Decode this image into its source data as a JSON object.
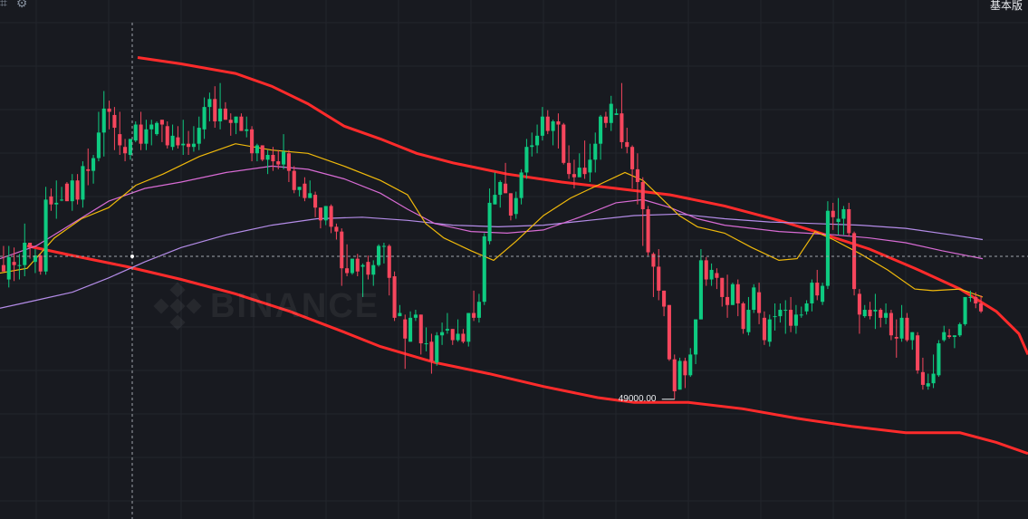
{
  "toolbar": {
    "left_icons": [
      "crop-icon",
      "gear-icon"
    ],
    "mode_label": "基本版"
  },
  "watermark": {
    "text": "BINANCE"
  },
  "colors": {
    "background": "#181a20",
    "grid": "#22252c",
    "bull": "#0ecb81",
    "bear": "#f6465d",
    "channel": "#ff2b2b",
    "ma_short": "#f0b90b",
    "ma_mid": "#d86bd4",
    "ma_long": "#b48ce8",
    "crosshair": "#a0a4ab"
  },
  "chart_data": {
    "type": "candlestick",
    "low_marker": "49000.00",
    "candles": [
      [
        57.4,
        57.0,
        58.6,
        57.0
      ],
      [
        56.5,
        57.9,
        58.6,
        56.0
      ],
      [
        57.6,
        57.4,
        58.5,
        56.4
      ],
      [
        57.4,
        57.4,
        58.1,
        56.5
      ],
      [
        57.4,
        58.8,
        60.0,
        56.7
      ],
      [
        58.8,
        58.5,
        58.8,
        57.8
      ],
      [
        57.6,
        58.0,
        58.4,
        56.9
      ],
      [
        58.0,
        57.0,
        58.1,
        56.8
      ],
      [
        57.0,
        61.5,
        62.3,
        56.8
      ],
      [
        61.7,
        61.2,
        62.2,
        60.8
      ],
      [
        61.2,
        61.3,
        62.7,
        60.3
      ],
      [
        61.5,
        61.5,
        62.3,
        61.4
      ],
      [
        62.5,
        61.4,
        62.6,
        61.4
      ],
      [
        61.4,
        62.7,
        63.1,
        60.8
      ],
      [
        62.7,
        61.5,
        63.1,
        61.2
      ],
      [
        61.5,
        63.6,
        63.9,
        61.0
      ],
      [
        63.4,
        63.3,
        64.7,
        62.4
      ],
      [
        63.3,
        64.1,
        64.3,
        62.5
      ],
      [
        64.1,
        65.7,
        67.0,
        63.9
      ],
      [
        65.7,
        67.2,
        68.3,
        64.2
      ],
      [
        67.2,
        67.0,
        67.7,
        65.9
      ],
      [
        66.8,
        66.0,
        67.3,
        64.6
      ],
      [
        65.6,
        64.9,
        67.0,
        64.3
      ],
      [
        64.8,
        64.4,
        65.3,
        63.9
      ],
      [
        64.3,
        65.3,
        65.3,
        64.0
      ],
      [
        65.2,
        66.2,
        66.4,
        65.1
      ],
      [
        66.2,
        65.0,
        67.0,
        64.6
      ],
      [
        65.0,
        65.9,
        66.5,
        64.6
      ],
      [
        65.9,
        66.2,
        66.5,
        64.9
      ],
      [
        65.6,
        66.3,
        66.4,
        65.5
      ],
      [
        66.5,
        66.2,
        66.5,
        65.1
      ],
      [
        66.1,
        64.9,
        66.4,
        64.7
      ],
      [
        64.8,
        65.5,
        66.2,
        64.6
      ],
      [
        65.4,
        64.9,
        66.1,
        64.7
      ],
      [
        64.9,
        65.0,
        66.5,
        64.3
      ],
      [
        65.0,
        64.8,
        65.8,
        64.3
      ],
      [
        64.8,
        65.0,
        66.1,
        64.5
      ],
      [
        65.0,
        66.0,
        66.7,
        64.6
      ],
      [
        65.9,
        67.3,
        67.9,
        65.3
      ],
      [
        67.3,
        67.8,
        68.2,
        66.4
      ],
      [
        67.8,
        66.4,
        68.6,
        66.0
      ],
      [
        66.4,
        67.2,
        68.8,
        65.9
      ],
      [
        67.2,
        66.5,
        67.6,
        66.5
      ],
      [
        66.5,
        66.3,
        66.9,
        65.5
      ],
      [
        66.3,
        66.7,
        66.7,
        65.6
      ],
      [
        66.7,
        65.8,
        66.9,
        65.8
      ],
      [
        65.8,
        65.9,
        66.7,
        65.4
      ],
      [
        65.9,
        64.4,
        66.1,
        63.9
      ],
      [
        64.4,
        64.9,
        65.0,
        63.9
      ],
      [
        64.9,
        64.0,
        64.9,
        63.9
      ],
      [
        64.0,
        64.3,
        64.6,
        63.1
      ],
      [
        64.3,
        63.9,
        64.8,
        63.3
      ],
      [
        63.9,
        63.7,
        64.6,
        63.4
      ],
      [
        63.7,
        64.5,
        65.6,
        63.4
      ],
      [
        64.4,
        63.3,
        64.6,
        62.6
      ],
      [
        63.3,
        62.1,
        63.6,
        61.9
      ],
      [
        62.1,
        62.3,
        62.3,
        61.7
      ],
      [
        62.5,
        61.6,
        62.9,
        61.4
      ],
      [
        61.6,
        61.9,
        62.7,
        61.7
      ],
      [
        61.8,
        61.0,
        62.0,
        60.4
      ],
      [
        61.0,
        60.2,
        61.0,
        59.7
      ],
      [
        60.2,
        61.1,
        61.1,
        59.9
      ],
      [
        61.1,
        59.8,
        61.2,
        59.4
      ],
      [
        59.8,
        59.5,
        60.0,
        59.0
      ],
      [
        59.5,
        57.2,
        59.7,
        56.1
      ],
      [
        57.2,
        56.9,
        58.7,
        56.7
      ],
      [
        56.9,
        57.8,
        57.8,
        56.8
      ],
      [
        57.8,
        57.0,
        58.1,
        56.7
      ],
      [
        57.3,
        57.4,
        57.5,
        55.4
      ],
      [
        57.6,
        56.8,
        58.0,
        56.5
      ],
      [
        56.8,
        57.4,
        57.7,
        56.1
      ],
      [
        57.4,
        58.6,
        58.7,
        57.3
      ],
      [
        58.6,
        58.6,
        58.8,
        57.5
      ],
      [
        58.6,
        56.6,
        58.7,
        55.5
      ],
      [
        56.7,
        54.1,
        57.0,
        53.9
      ],
      [
        54.2,
        54.4,
        54.9,
        54.2
      ],
      [
        54.0,
        52.8,
        54.3,
        50.9
      ],
      [
        52.6,
        54.1,
        54.5,
        52.6
      ],
      [
        54.1,
        54.3,
        54.6,
        53.9
      ],
      [
        54.3,
        52.5,
        54.3,
        51.8
      ],
      [
        52.5,
        52.5,
        53.5,
        52.0
      ],
      [
        52.6,
        51.4,
        53.1,
        50.6
      ],
      [
        51.3,
        53.0,
        53.2,
        51.1
      ],
      [
        53.0,
        53.2,
        53.8,
        52.4
      ],
      [
        53.3,
        53.4,
        54.4,
        53.1
      ],
      [
        53.4,
        52.7,
        53.4,
        52.4
      ],
      [
        52.7,
        53.1,
        54.0,
        52.6
      ],
      [
        53.1,
        52.6,
        53.4,
        52.5
      ],
      [
        52.6,
        54.4,
        54.4,
        52.3
      ],
      [
        54.4,
        54.1,
        55.8,
        53.9
      ],
      [
        54.1,
        55.1,
        55.6,
        53.8
      ],
      [
        55.1,
        59.2,
        59.4,
        54.9
      ],
      [
        58.9,
        61.3,
        62.2,
        58.7
      ],
      [
        61.2,
        61.8,
        63.2,
        61.2
      ],
      [
        61.8,
        62.6,
        62.7,
        61.0
      ],
      [
        62.5,
        61.9,
        63.8,
        61.9
      ],
      [
        61.9,
        60.5,
        61.9,
        60.2
      ],
      [
        60.6,
        61.6,
        62.0,
        60.3
      ],
      [
        61.6,
        63.2,
        63.4,
        61.2
      ],
      [
        63.2,
        64.8,
        65.3,
        62.8
      ],
      [
        64.8,
        64.9,
        65.7,
        64.2
      ],
      [
        64.9,
        65.5,
        66.2,
        64.4
      ],
      [
        65.5,
        66.7,
        67.3,
        65.2
      ],
      [
        66.7,
        65.8,
        67.1,
        65.6
      ],
      [
        65.8,
        66.4,
        66.5,
        64.9
      ],
      [
        66.4,
        66.2,
        66.9,
        64.7
      ],
      [
        66.2,
        63.8,
        66.3,
        63.7
      ],
      [
        63.8,
        63.1,
        64.9,
        62.8
      ],
      [
        63.1,
        62.9,
        64.0,
        62.2
      ],
      [
        62.9,
        63.5,
        64.4,
        63.3
      ],
      [
        63.5,
        63.1,
        65.2,
        62.8
      ],
      [
        63.2,
        64.0,
        65.0,
        62.6
      ],
      [
        64.0,
        65.0,
        65.7,
        63.2
      ],
      [
        65.0,
        66.7,
        66.8,
        64.0
      ],
      [
        66.7,
        66.3,
        67.0,
        66.0
      ],
      [
        66.3,
        67.5,
        68.0,
        65.8
      ],
      [
        66.8,
        66.9,
        67.2,
        66.8
      ],
      [
        66.9,
        65.1,
        68.8,
        64.7
      ],
      [
        65.1,
        64.8,
        66.0,
        64.4
      ],
      [
        64.8,
        63.4,
        64.9,
        62.2
      ],
      [
        63.4,
        62.6,
        64.4,
        61.2
      ],
      [
        62.6,
        60.9,
        62.9,
        58.6
      ],
      [
        60.9,
        58.2,
        61.1,
        58.0
      ],
      [
        58.1,
        57.3,
        58.2,
        55.4
      ],
      [
        57.3,
        55.8,
        58.4,
        55.2
      ],
      [
        55.8,
        54.8,
        55.8,
        54.2
      ],
      [
        54.9,
        51.5,
        54.9,
        51.4
      ],
      [
        51.5,
        49.5,
        51.8,
        49.0
      ],
      [
        49.6,
        51.4,
        51.6,
        49.6
      ],
      [
        51.4,
        50.5,
        51.6,
        49.7
      ],
      [
        50.5,
        51.8,
        52.2,
        50.4
      ],
      [
        51.8,
        54.0,
        54.0,
        51.2
      ],
      [
        54.0,
        57.7,
        58.4,
        54.0
      ],
      [
        57.7,
        56.5,
        57.9,
        56.1
      ],
      [
        56.5,
        57.1,
        57.5,
        56.1
      ],
      [
        56.9,
        56.6,
        57.2,
        55.9
      ],
      [
        56.6,
        55.4,
        56.6,
        54.8
      ],
      [
        55.4,
        54.9,
        56.8,
        54.1
      ],
      [
        54.9,
        56.2,
        56.3,
        54.9
      ],
      [
        56.2,
        55.0,
        56.5,
        54.2
      ],
      [
        55.0,
        53.4,
        55.1,
        53.1
      ],
      [
        53.2,
        54.6,
        55.4,
        53.0
      ],
      [
        54.6,
        56.0,
        56.2,
        54.4
      ],
      [
        55.7,
        54.4,
        56.3,
        53.7
      ],
      [
        54.1,
        52.7,
        54.5,
        52.4
      ],
      [
        52.6,
        54.0,
        54.3,
        52.3
      ],
      [
        54.2,
        54.2,
        55.0,
        53.3
      ],
      [
        54.2,
        54.6,
        55.0,
        53.8
      ],
      [
        54.6,
        54.6,
        55.2,
        53.1
      ],
      [
        54.6,
        53.6,
        55.4,
        53.2
      ],
      [
        53.6,
        54.3,
        54.9,
        53.1
      ],
      [
        54.3,
        54.3,
        54.8,
        54.1
      ],
      [
        54.5,
        55.0,
        55.2,
        54.3
      ],
      [
        55.0,
        56.3,
        56.5,
        54.5
      ],
      [
        56.3,
        55.5,
        57.1,
        55.2
      ],
      [
        55.1,
        56.1,
        56.3,
        54.9
      ],
      [
        56.1,
        60.8,
        61.4,
        55.9
      ],
      [
        60.8,
        60.4,
        61.3,
        59.6
      ],
      [
        60.1,
        60.3,
        61.6,
        59.3
      ],
      [
        60.3,
        60.9,
        61.1,
        59.3
      ],
      [
        60.9,
        59.4,
        61.3,
        59.2
      ],
      [
        59.4,
        55.9,
        59.5,
        55.5
      ],
      [
        55.6,
        54.3,
        55.9,
        53.1
      ],
      [
        54.2,
        54.6,
        54.9,
        54.1
      ],
      [
        54.6,
        54.2,
        55.1,
        54.0
      ],
      [
        54.5,
        54.6,
        55.6,
        53.4
      ],
      [
        54.6,
        54.1,
        54.7,
        53.5
      ],
      [
        54.1,
        54.4,
        55.0,
        53.7
      ],
      [
        54.4,
        53.0,
        54.6,
        52.7
      ],
      [
        52.9,
        52.8,
        54.0,
        51.6
      ],
      [
        52.8,
        54.1,
        54.9,
        52.6
      ],
      [
        54.1,
        52.7,
        54.4,
        52.6
      ],
      [
        52.7,
        53.2,
        53.2,
        52.1
      ],
      [
        53.0,
        50.8,
        53.2,
        50.6
      ],
      [
        50.7,
        49.9,
        51.6,
        49.6
      ],
      [
        49.8,
        50.0,
        50.6,
        49.6
      ],
      [
        50.0,
        50.6,
        51.8,
        49.7
      ],
      [
        50.5,
        52.5,
        52.7,
        50.4
      ],
      [
        52.7,
        53.2,
        53.6,
        52.6
      ],
      [
        53.0,
        52.9,
        53.4,
        52.8
      ],
      [
        52.9,
        53.0,
        53.0,
        52.2
      ],
      [
        53.0,
        53.7,
        53.8,
        52.9
      ],
      [
        53.7,
        55.4,
        55.4,
        53.6
      ],
      [
        55.4,
        55.4,
        55.8,
        55.1
      ],
      [
        55.4,
        55.0,
        55.7,
        54.7
      ],
      [
        55.0,
        54.5,
        55.5,
        54.4
      ]
    ],
    "ma_short": [
      [
        0,
        56.9
      ],
      [
        30,
        57.2
      ],
      [
        60,
        59.1
      ],
      [
        90,
        60.3
      ],
      [
        120,
        61.0
      ],
      [
        150,
        62.4
      ],
      [
        180,
        63.1
      ],
      [
        220,
        64.2
      ],
      [
        260,
        65.0
      ],
      [
        300,
        64.6
      ],
      [
        340,
        64.4
      ],
      [
        380,
        63.6
      ],
      [
        420,
        62.7
      ],
      [
        450,
        61.8
      ],
      [
        470,
        60.0
      ],
      [
        490,
        59.1
      ],
      [
        520,
        58.3
      ],
      [
        545,
        57.7
      ],
      [
        570,
        58.9
      ],
      [
        600,
        60.5
      ],
      [
        630,
        61.6
      ],
      [
        660,
        62.4
      ],
      [
        690,
        63.2
      ],
      [
        710,
        62.7
      ],
      [
        730,
        61.6
      ],
      [
        750,
        60.5
      ],
      [
        770,
        59.8
      ],
      [
        800,
        59.4
      ],
      [
        830,
        58.5
      ],
      [
        860,
        57.7
      ],
      [
        880,
        57.8
      ],
      [
        900,
        59.5
      ],
      [
        920,
        59.0
      ],
      [
        950,
        58.1
      ],
      [
        980,
        57.1
      ],
      [
        1010,
        55.9
      ],
      [
        1030,
        55.8
      ],
      [
        1060,
        55.9
      ],
      [
        1085,
        55.4
      ]
    ],
    "ma_mid": [
      [
        0,
        57.8
      ],
      [
        40,
        58.6
      ],
      [
        80,
        60.0
      ],
      [
        120,
        61.4
      ],
      [
        160,
        62.2
      ],
      [
        200,
        62.6
      ],
      [
        250,
        63.2
      ],
      [
        300,
        63.6
      ],
      [
        340,
        63.4
      ],
      [
        380,
        62.8
      ],
      [
        420,
        61.9
      ],
      [
        450,
        60.9
      ],
      [
        480,
        60.0
      ],
      [
        520,
        59.5
      ],
      [
        560,
        59.4
      ],
      [
        600,
        59.6
      ],
      [
        640,
        60.4
      ],
      [
        680,
        61.3
      ],
      [
        710,
        61.5
      ],
      [
        740,
        61.0
      ],
      [
        770,
        60.3
      ],
      [
        800,
        59.9
      ],
      [
        830,
        59.7
      ],
      [
        860,
        59.5
      ],
      [
        890,
        59.4
      ],
      [
        920,
        59.3
      ],
      [
        960,
        59.1
      ],
      [
        1000,
        58.8
      ],
      [
        1040,
        58.3
      ],
      [
        1085,
        57.8
      ]
    ],
    "ma_long": [
      [
        0,
        54.7
      ],
      [
        40,
        55.2
      ],
      [
        80,
        55.7
      ],
      [
        120,
        56.6
      ],
      [
        160,
        57.6
      ],
      [
        200,
        58.5
      ],
      [
        250,
        59.3
      ],
      [
        300,
        59.9
      ],
      [
        350,
        60.3
      ],
      [
        400,
        60.4
      ],
      [
        450,
        60.2
      ],
      [
        500,
        59.9
      ],
      [
        550,
        59.8
      ],
      [
        600,
        59.9
      ],
      [
        650,
        60.2
      ],
      [
        700,
        60.5
      ],
      [
        750,
        60.6
      ],
      [
        800,
        60.3
      ],
      [
        850,
        60.1
      ],
      [
        900,
        60.0
      ],
      [
        950,
        59.9
      ],
      [
        1000,
        59.7
      ],
      [
        1050,
        59.3
      ],
      [
        1085,
        59.0
      ]
    ],
    "channel_upper": [
      [
        152,
        70.4
      ],
      [
        200,
        70.0
      ],
      [
        260,
        69.4
      ],
      [
        300,
        68.6
      ],
      [
        340,
        67.5
      ],
      [
        380,
        66.1
      ],
      [
        420,
        65.3
      ],
      [
        460,
        64.4
      ],
      [
        500,
        63.8
      ],
      [
        560,
        63.1
      ],
      [
        620,
        62.6
      ],
      [
        680,
        62.2
      ],
      [
        740,
        61.8
      ],
      [
        800,
        61.1
      ],
      [
        860,
        60.2
      ],
      [
        900,
        59.5
      ],
      [
        960,
        58.4
      ],
      [
        1010,
        57.2
      ],
      [
        1060,
        55.9
      ],
      [
        1100,
        54.5
      ],
      [
        1125,
        53.1
      ],
      [
        1135,
        51.8
      ]
    ],
    "channel_lower": [
      [
        30,
        58.6
      ],
      [
        80,
        58.0
      ],
      [
        140,
        57.3
      ],
      [
        200,
        56.5
      ],
      [
        260,
        55.6
      ],
      [
        320,
        54.5
      ],
      [
        380,
        53.2
      ],
      [
        420,
        52.3
      ],
      [
        480,
        51.3
      ],
      [
        540,
        50.6
      ],
      [
        600,
        49.8
      ],
      [
        660,
        49.1
      ],
      [
        700,
        48.8
      ],
      [
        760,
        48.8
      ],
      [
        820,
        48.4
      ],
      [
        880,
        47.8
      ],
      [
        940,
        47.3
      ],
      [
        1000,
        46.9
      ],
      [
        1060,
        46.9
      ],
      [
        1100,
        46.3
      ],
      [
        1135,
        45.6
      ]
    ],
    "crosshair": {
      "x_index": 146,
      "y_value": 57.95
    }
  }
}
